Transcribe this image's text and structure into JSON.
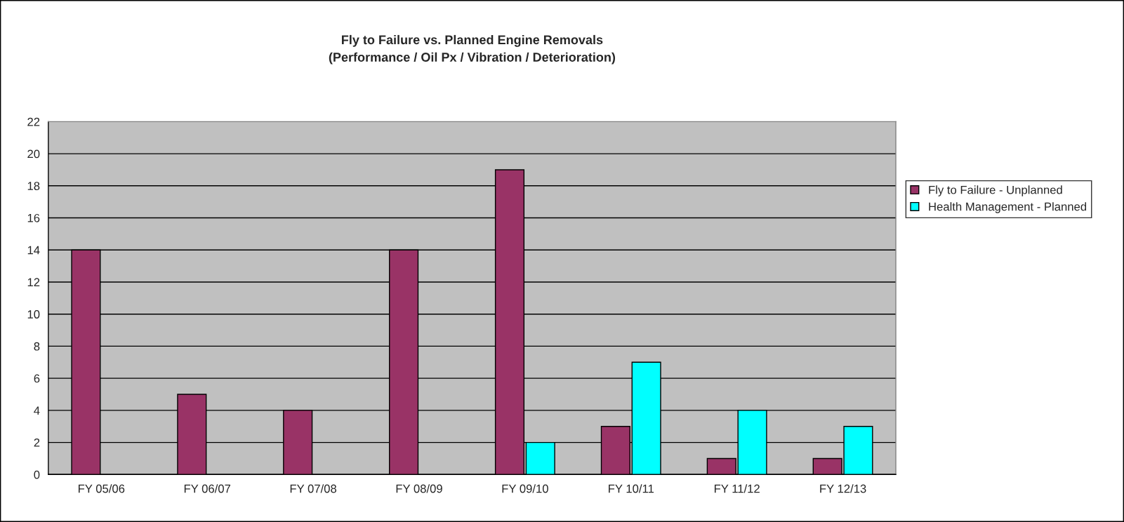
{
  "chart_data": {
    "type": "bar",
    "title": "Fly to Failure vs. Planned Engine Removals\n(Performance / Oil Px / Vibration / Deterioration)",
    "categories": [
      "FY 05/06",
      "FY 06/07",
      "FY 07/08",
      "FY 08/09",
      "FY 09/10",
      "FY 10/11",
      "FY 11/12",
      "FY 12/13"
    ],
    "series": [
      {
        "name": "Fly to Failure - Unplanned",
        "color": "#993366",
        "values": [
          14,
          5,
          4,
          14,
          19,
          3,
          1,
          1
        ]
      },
      {
        "name": "Health Management - Planned",
        "color": "#00ffff",
        "values": [
          null,
          null,
          null,
          null,
          2,
          7,
          4,
          3
        ]
      }
    ],
    "ylim": [
      0,
      22
    ],
    "yticks": [
      0,
      2,
      4,
      6,
      8,
      10,
      12,
      14,
      16,
      18,
      20,
      22
    ],
    "grid": "y",
    "legend": "right"
  }
}
